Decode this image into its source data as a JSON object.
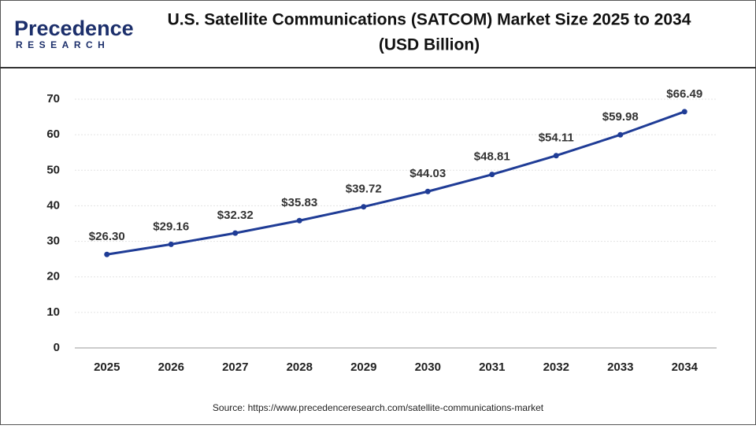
{
  "logo": {
    "name": "Precedence",
    "tagline": "RESEARCH"
  },
  "chart_data": {
    "type": "line",
    "title": "U.S. Satellite Communications (SATCOM) Market Size 2025 to 2034",
    "subtitle": "(USD Billion)",
    "categories": [
      "2025",
      "2026",
      "2027",
      "2028",
      "2029",
      "2030",
      "2031",
      "2032",
      "2033",
      "2034"
    ],
    "series": [
      {
        "color": "#1f3c96",
        "values": [
          26.3,
          29.16,
          32.32,
          35.83,
          39.72,
          44.03,
          48.81,
          54.11,
          59.98,
          66.49
        ],
        "value_labels": [
          "$26.30",
          "$29.16",
          "$32.32",
          "$35.83",
          "$39.72",
          "$44.03",
          "$48.81",
          "$54.11",
          "$59.98",
          "$66.49"
        ]
      }
    ],
    "ylim": [
      0,
      70
    ],
    "yticks": [
      0,
      10,
      20,
      30,
      40,
      50,
      60,
      70
    ],
    "grid": true,
    "source": "Source:  https://www.precedenceresearch.com/satellite-communications-market"
  }
}
